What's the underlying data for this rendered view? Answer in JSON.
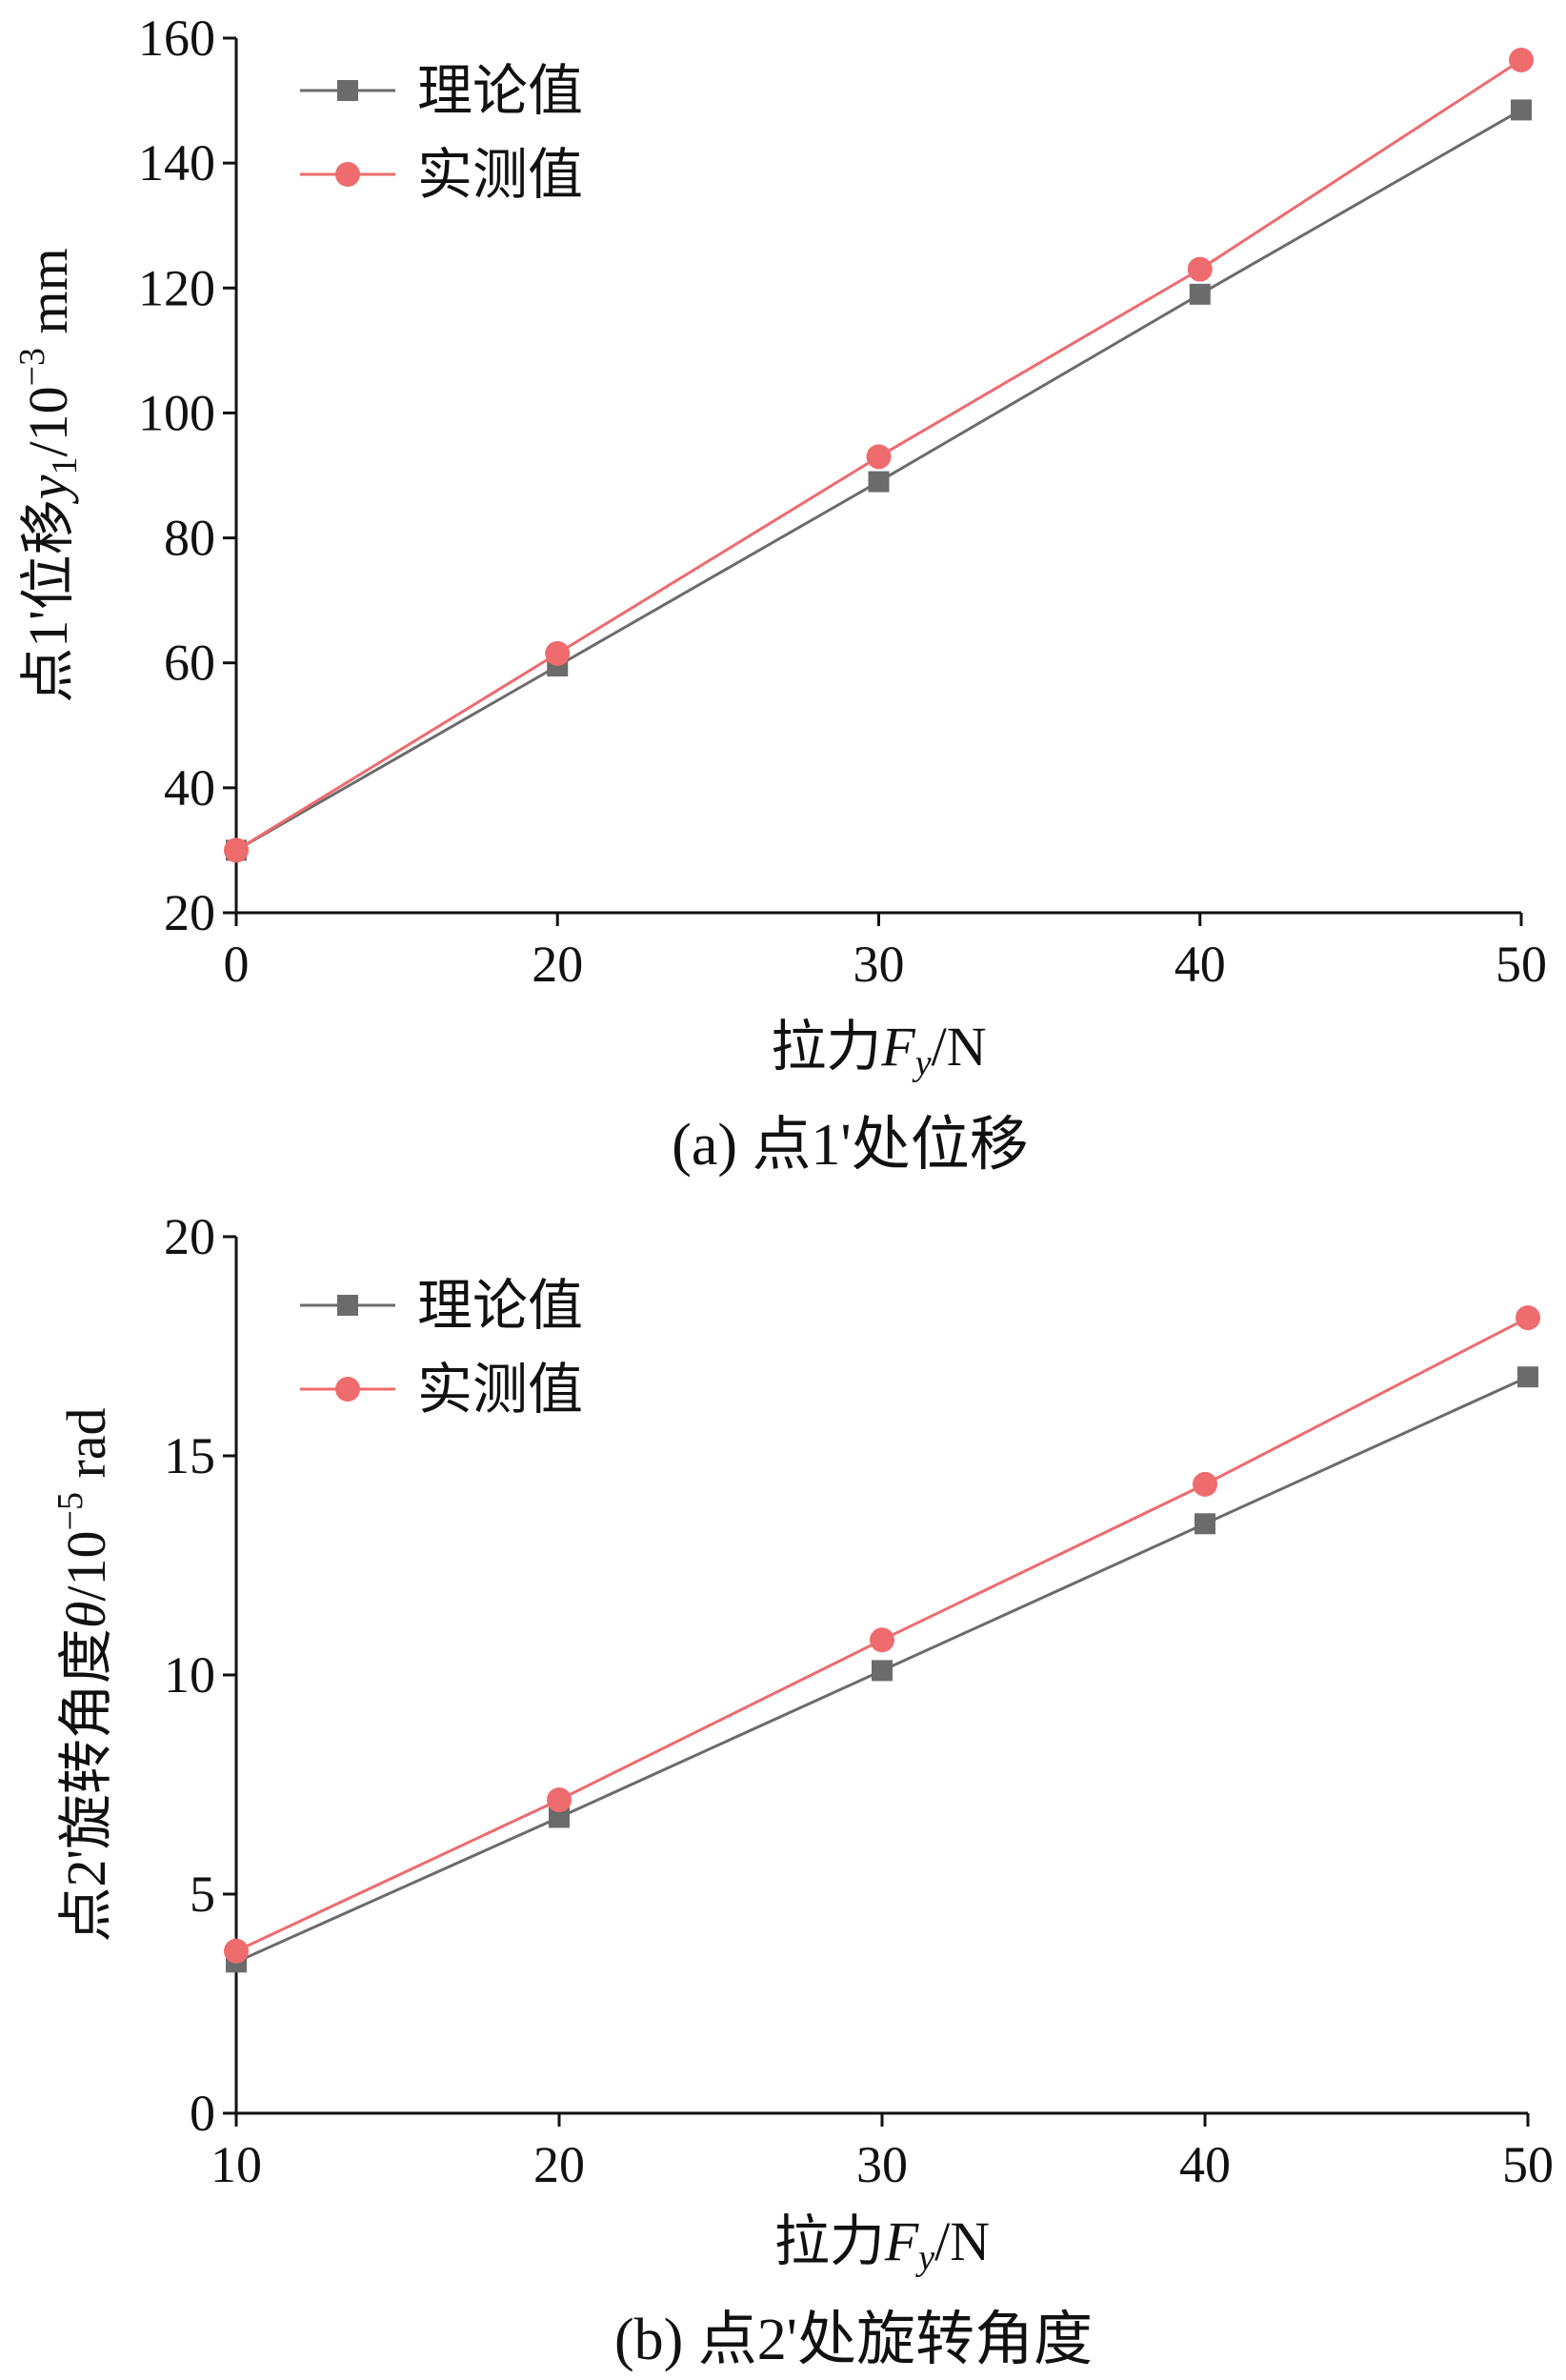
{
  "colors": {
    "theory": "#6b6b6b",
    "measured": "#ee6b6e",
    "axis": "#111111"
  },
  "chart_data": [
    {
      "type": "line",
      "caption": "(a)  点1'处位移",
      "xlabel": {
        "prefix": "拉力",
        "var": "F",
        "sub": "y",
        "suffix": "/N"
      },
      "ylabel": {
        "prefix": "点1'位移",
        "var": "y",
        "sub": "1",
        "unit_base": "/10",
        "unit_exp": "−3",
        "unit_suffix": " mm"
      },
      "categories": [
        "0",
        "20",
        "30",
        "40",
        "50"
      ],
      "ylim": [
        20,
        160
      ],
      "yticks": [
        20,
        40,
        60,
        80,
        100,
        120,
        140,
        160
      ],
      "legend_position": "top-left",
      "grid": false,
      "series": [
        {
          "name": "理论值",
          "marker": "square",
          "color_key": "theory",
          "values": [
            30,
            59.5,
            89,
            119,
            148.5
          ]
        },
        {
          "name": "实测值",
          "marker": "circle",
          "color_key": "measured",
          "values": [
            30,
            61.5,
            93,
            123,
            156.5
          ]
        }
      ]
    },
    {
      "type": "line",
      "caption": "(b)  点2'处旋转角度",
      "xlabel": {
        "prefix": "拉力",
        "var": "F",
        "sub": "y",
        "suffix": "/N"
      },
      "ylabel": {
        "prefix": "点2'旋转角度",
        "var": "θ",
        "sub": "",
        "unit_base": "/10",
        "unit_exp": "−5",
        "unit_suffix": " rad"
      },
      "categories": [
        "10",
        "20",
        "30",
        "40",
        "50"
      ],
      "ylim": [
        0,
        20
      ],
      "yticks": [
        0,
        5,
        10,
        15,
        20
      ],
      "legend_position": "top-left",
      "grid": false,
      "series": [
        {
          "name": "理论值",
          "marker": "square",
          "color_key": "theory",
          "values": [
            3.45,
            6.75,
            10.1,
            13.45,
            16.8
          ]
        },
        {
          "name": "实测值",
          "marker": "circle",
          "color_key": "measured",
          "values": [
            3.7,
            7.15,
            10.8,
            14.35,
            18.15
          ]
        }
      ]
    }
  ]
}
